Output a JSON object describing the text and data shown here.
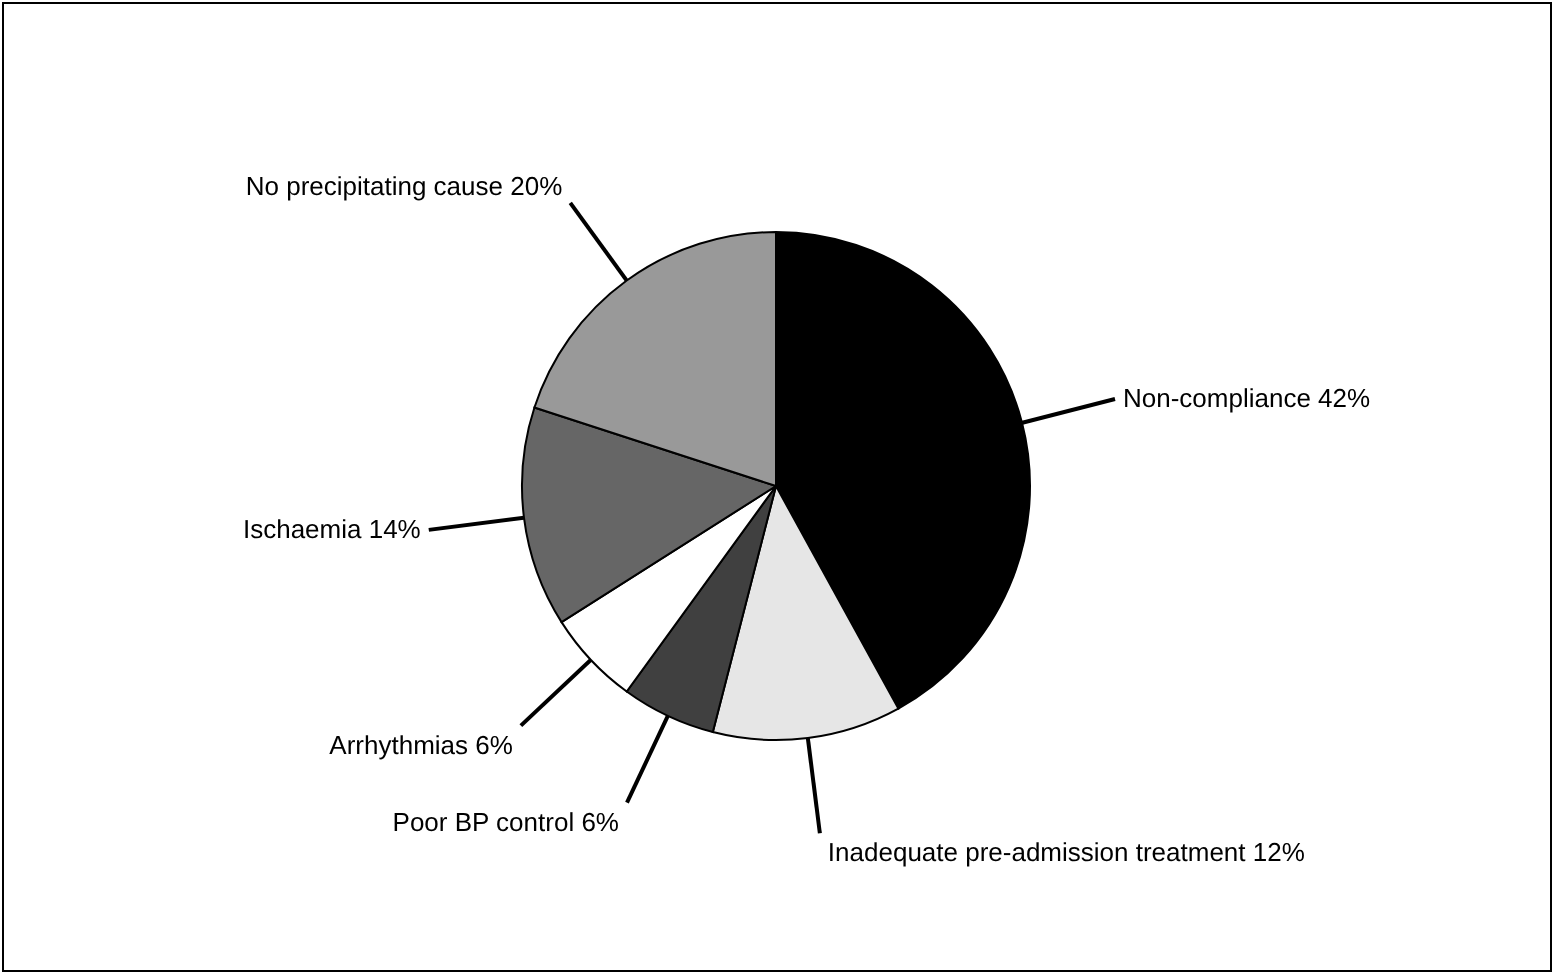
{
  "chart_data": {
    "type": "pie",
    "categories": [
      "Non-compliance 42%",
      "Inadequate pre-admission treatment 12%",
      "Poor BP control 6%",
      "Arrhythmias 6%",
      "Ischaemia 14%",
      "No precipitating cause 20%"
    ],
    "values": [
      42,
      12,
      6,
      6,
      14,
      20
    ],
    "colors": [
      "#000000",
      "#e6e6e6",
      "#404040",
      "#ffffff",
      "#666666",
      "#999999"
    ]
  }
}
